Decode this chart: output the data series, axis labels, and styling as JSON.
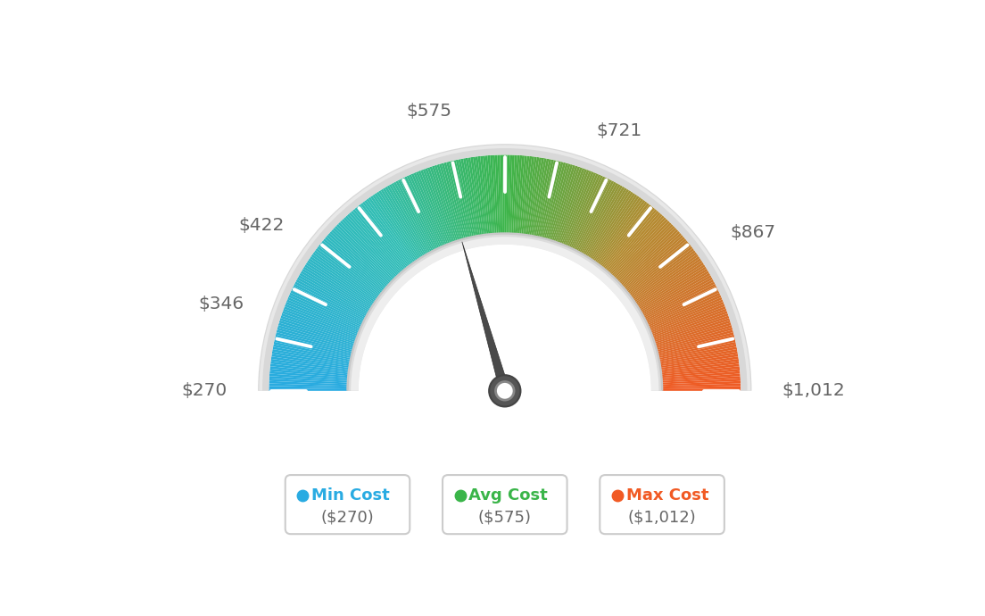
{
  "min_val": 270,
  "avg_val": 575,
  "max_val": 1012,
  "label_values": [
    270,
    346,
    422,
    575,
    721,
    867,
    1012
  ],
  "legend_labels": [
    "Min Cost",
    "Avg Cost",
    "Max Cost"
  ],
  "legend_values": [
    "($270)",
    "($575)",
    "($1,012)"
  ],
  "legend_colors": [
    "#29ABE2",
    "#3AB549",
    "#F15A24"
  ],
  "bg_color": "#ffffff",
  "needle_color": "#555555",
  "color_stops": [
    [
      0.0,
      [
        41,
        171,
        226
      ]
    ],
    [
      0.3,
      [
        50,
        190,
        180
      ]
    ],
    [
      0.5,
      [
        61,
        181,
        74
      ]
    ],
    [
      0.72,
      [
        180,
        140,
        50
      ]
    ],
    [
      1.0,
      [
        241,
        90,
        36
      ]
    ]
  ]
}
